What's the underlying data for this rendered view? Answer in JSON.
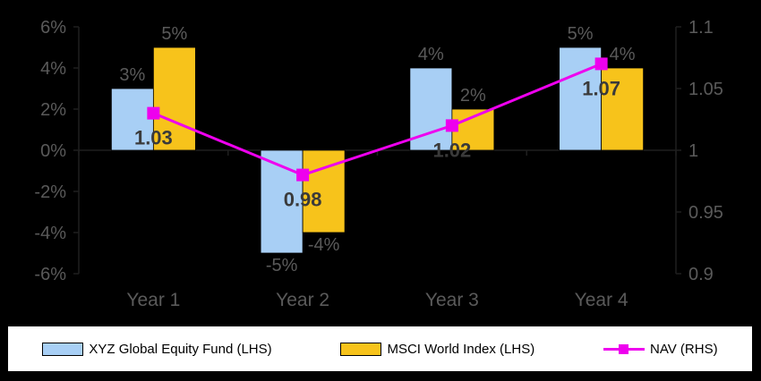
{
  "chart_data": {
    "type": "bar",
    "categories": [
      "Year 1",
      "Year 2",
      "Year 3",
      "Year 4"
    ],
    "series": [
      {
        "name": "XYZ Global Equity Fund (LHS)",
        "type": "bar",
        "axis": "left",
        "color": "#a8cff5",
        "values": [
          3,
          -5,
          4,
          5
        ],
        "labels": [
          "3%",
          "-5%",
          "4%",
          "5%"
        ]
      },
      {
        "name": "MSCI World Index (LHS)",
        "type": "bar",
        "axis": "left",
        "color": "#f7c31b",
        "values": [
          5,
          -4,
          2,
          4
        ],
        "labels": [
          "5%",
          "-4%",
          "2%",
          "4%"
        ]
      },
      {
        "name": "NAV (RHS)",
        "type": "line",
        "axis": "right",
        "color": "#ee00ee",
        "values": [
          1.03,
          0.98,
          1.02,
          1.07
        ],
        "labels": [
          "1.03",
          "0.98",
          "1.02",
          "1.07"
        ]
      }
    ],
    "y_left": {
      "min": -6,
      "max": 6,
      "step": 2,
      "tick_labels": [
        "6%",
        "4%",
        "2%",
        "0%",
        "-2%",
        "-4%",
        "-6%"
      ]
    },
    "y_right": {
      "min": 0.9,
      "max": 1.1,
      "step": 0.05,
      "tick_labels": [
        "1.1",
        "1.05",
        "1",
        "0.95",
        "0.9"
      ]
    },
    "grid": false,
    "legend_position": "bottom",
    "background": "#000000",
    "title": "",
    "xlabel": "",
    "ylabel": ""
  },
  "legend": {
    "fund": "XYZ Global Equity Fund (LHS)",
    "index": "MSCI World Index (LHS)",
    "nav": "NAV (RHS)"
  }
}
